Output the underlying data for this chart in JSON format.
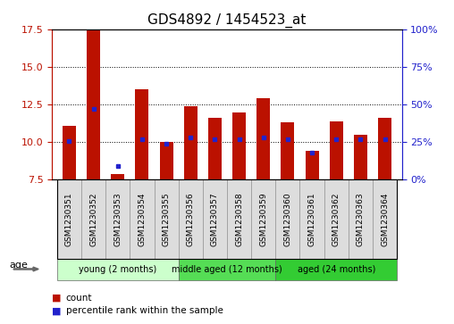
{
  "title": "GDS4892 / 1454523_at",
  "samples": [
    "GSM1230351",
    "GSM1230352",
    "GSM1230353",
    "GSM1230354",
    "GSM1230355",
    "GSM1230356",
    "GSM1230357",
    "GSM1230358",
    "GSM1230359",
    "GSM1230360",
    "GSM1230361",
    "GSM1230362",
    "GSM1230363",
    "GSM1230364"
  ],
  "count_values": [
    11.1,
    17.5,
    7.9,
    13.5,
    10.0,
    12.4,
    11.6,
    12.0,
    12.9,
    11.3,
    9.4,
    11.4,
    10.5,
    11.6
  ],
  "percentile_values": [
    26,
    47,
    9,
    27,
    24,
    28,
    27,
    27,
    28,
    27,
    18,
    27,
    27,
    27
  ],
  "ylim_left": [
    7.5,
    17.5
  ],
  "ylim_right": [
    0,
    100
  ],
  "yticks_left": [
    7.5,
    10.0,
    12.5,
    15.0,
    17.5
  ],
  "yticks_right": [
    0,
    25,
    50,
    75,
    100
  ],
  "count_color": "#BB1100",
  "percentile_color": "#2222CC",
  "baseline": 7.5,
  "groups": [
    {
      "label": "young (2 months)",
      "start": 0,
      "end": 4,
      "color": "#CCFFCC"
    },
    {
      "label": "middle aged (12 months)",
      "start": 5,
      "end": 8,
      "color": "#55DD55"
    },
    {
      "label": "aged (24 months)",
      "start": 9,
      "end": 13,
      "color": "#33CC33"
    }
  ],
  "age_label": "age",
  "legend_count": "count",
  "legend_percentile": "percentile rank within the sample",
  "bar_width": 0.55,
  "title_fontsize": 11,
  "tick_fontsize": 7,
  "group_label_fontsize": 8
}
